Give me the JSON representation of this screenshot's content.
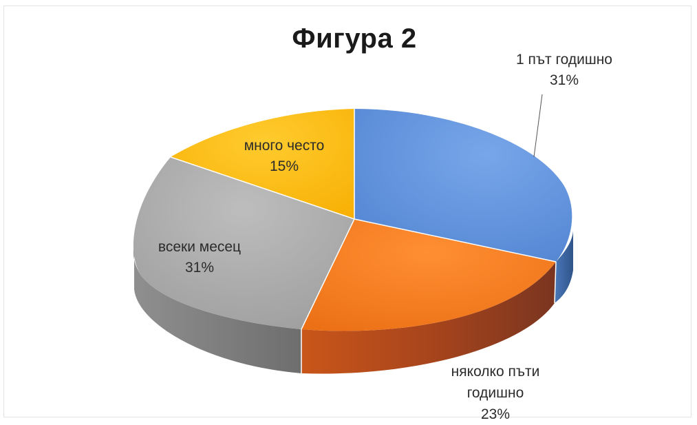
{
  "chart_data": {
    "type": "pie",
    "title": "Фигура 2",
    "slices": [
      {
        "label": "1 път годишно",
        "value": 31,
        "percent_label": "31%",
        "color": "#5b8fd9"
      },
      {
        "label": "няколко пъти годишно",
        "label_line1": "няколко пъти",
        "label_line2": "годишно",
        "value": 23,
        "percent_label": "23%",
        "color": "#f47b20"
      },
      {
        "label": "всеки месец",
        "value": 31,
        "percent_label": "31%",
        "color": "#a6a6a6"
      },
      {
        "label": "много често",
        "value": 15,
        "percent_label": "15%",
        "color": "#fdbb10"
      }
    ],
    "legend": "none",
    "style": "3d-pie"
  }
}
